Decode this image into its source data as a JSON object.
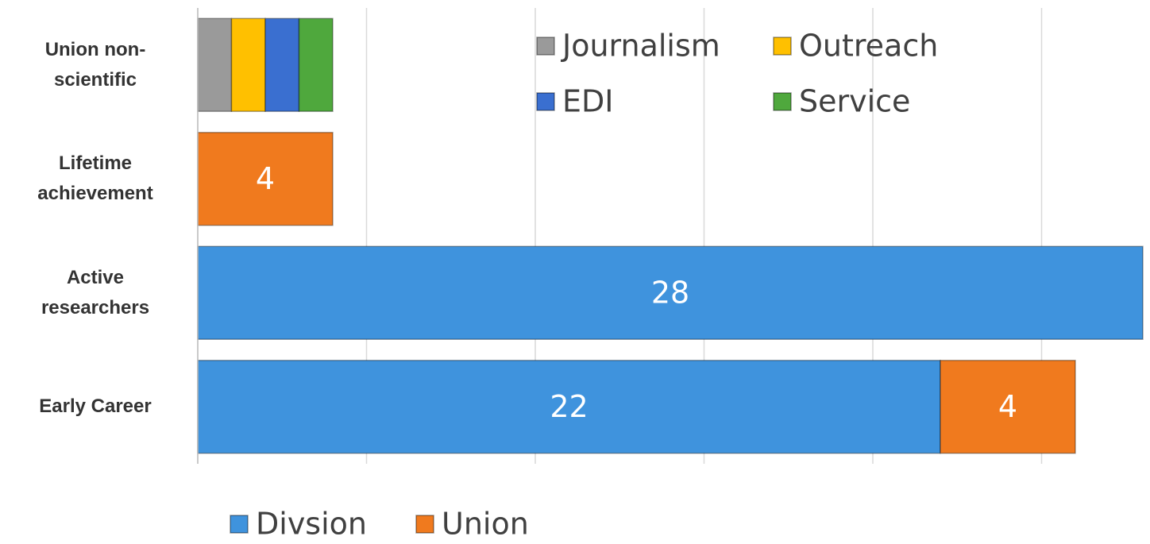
{
  "chart_data": {
    "type": "hbar-stacked",
    "categories": [
      "Union non-scientific",
      "Lifetime achievement",
      "Active researchers",
      "Early Career"
    ],
    "xlim": [
      0,
      28
    ],
    "xticks": [
      0,
      5,
      10,
      15,
      20,
      25
    ],
    "grid": true,
    "series": [
      {
        "name": "Divsion",
        "color": "#3f93dd",
        "values": [
          null,
          null,
          28,
          22
        ],
        "labels": true,
        "legend": "bottom"
      },
      {
        "name": "Union",
        "color": "#f07a1e",
        "values": [
          null,
          4,
          null,
          4
        ],
        "labels": true,
        "legend": "bottom"
      },
      {
        "name": "Journalism",
        "color": "#9a9a9a",
        "values": [
          1,
          null,
          null,
          null
        ],
        "labels": false,
        "legend": "top"
      },
      {
        "name": "Outreach",
        "color": "#ffc000",
        "values": [
          1,
          null,
          null,
          null
        ],
        "labels": false,
        "legend": "top"
      },
      {
        "name": "EDI",
        "color": "#3a6fd0",
        "values": [
          1,
          null,
          null,
          null
        ],
        "labels": false,
        "legend": "top"
      },
      {
        "name": "Service",
        "color": "#4fa83d",
        "values": [
          1,
          null,
          null,
          null
        ],
        "labels": false,
        "legend": "top"
      }
    ]
  }
}
